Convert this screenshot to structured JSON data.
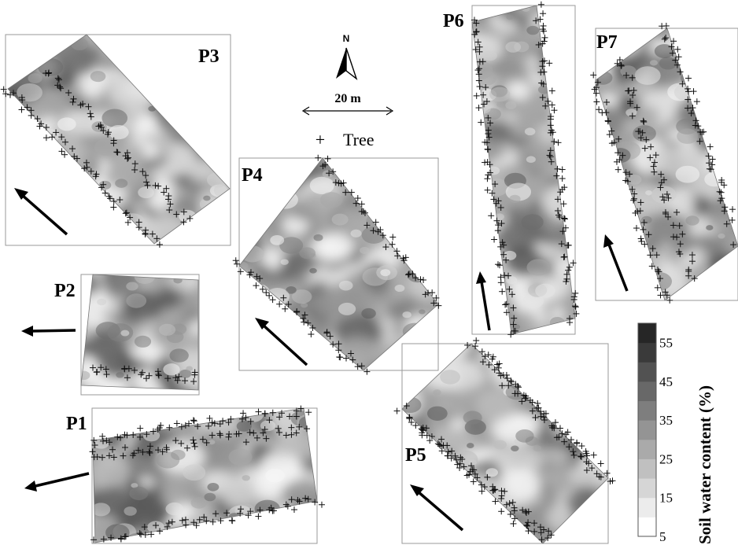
{
  "plots": [
    {
      "id": "P1",
      "label": "P1"
    },
    {
      "id": "P2",
      "label": "P2"
    },
    {
      "id": "P3",
      "label": "P3"
    },
    {
      "id": "P4",
      "label": "P4"
    },
    {
      "id": "P5",
      "label": "P5"
    },
    {
      "id": "P6",
      "label": "P6"
    },
    {
      "id": "P7",
      "label": "P7"
    }
  ],
  "north": {
    "label": "N"
  },
  "scale_bar": {
    "label": "20 m"
  },
  "tree_legend": {
    "symbol": "+",
    "label": "Tree"
  },
  "colorbar": {
    "title": "Soil water content (%)",
    "ticks": [
      "5",
      "15",
      "25",
      "35",
      "45",
      "55"
    ],
    "bands": [
      "#ffffff",
      "#ececec",
      "#d6d6d6",
      "#c0c0c0",
      "#aaaaaa",
      "#949494",
      "#7e7e7e",
      "#686868",
      "#525252",
      "#3a3a3a",
      "#262626"
    ]
  }
}
